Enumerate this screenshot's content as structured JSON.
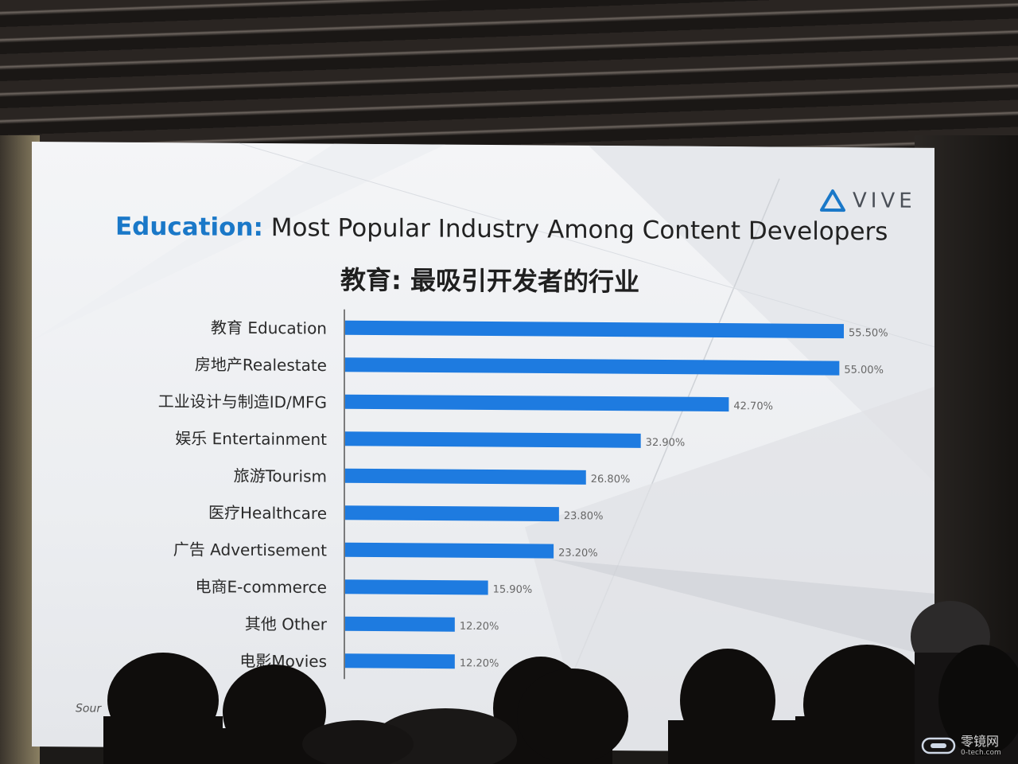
{
  "slide": {
    "title_accent": "Education:",
    "title_rest": " Most Popular Industry Among Content Developers",
    "subtitle": "教育: 最吸引开发者的行业",
    "source": "Sour"
  },
  "logo": {
    "text": "VIVE"
  },
  "watermark": {
    "text": "零镜网",
    "sub": "0-tech.com"
  },
  "colors": {
    "bar": "#1e7be0",
    "accent": "#1a78c8"
  },
  "chart_data": {
    "type": "bar",
    "orientation": "horizontal",
    "categories": [
      "教育 Education",
      "房地产Realestate",
      "工业设计与制造ID/MFG",
      "娱乐 Entertainment",
      "旅游Tourism",
      "医疗Healthcare",
      "广告 Advertisement",
      "电商E-commerce",
      "其他 Other",
      "电影Movies"
    ],
    "values": [
      55.5,
      55.0,
      42.7,
      32.9,
      26.8,
      23.8,
      23.2,
      15.9,
      12.2,
      12.2
    ],
    "value_labels": [
      "55.50%",
      "55.00%",
      "42.70%",
      "32.90%",
      "26.80%",
      "23.80%",
      "23.20%",
      "15.90%",
      "12.20%",
      "12.20%"
    ],
    "title": "Education: Most Popular Industry Among Content Developers",
    "subtitle": "教育: 最吸引开发者的行业",
    "xlim": [
      0,
      55.5
    ],
    "grid": false,
    "legend": "none"
  }
}
